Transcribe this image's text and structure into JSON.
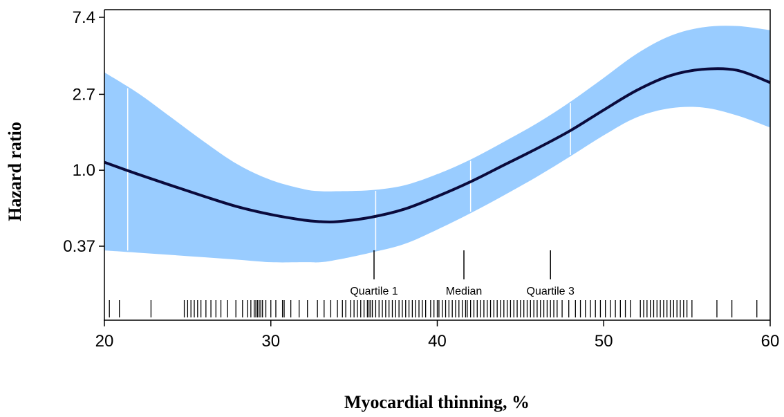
{
  "chart_data": {
    "type": "line",
    "xlabel": "Myocardial thinning, %",
    "ylabel": "Hazard ratio",
    "xlim": [
      20,
      60
    ],
    "ylog": true,
    "ylim": [
      0.18,
      7.4
    ],
    "x_ticks": [
      20,
      30,
      40,
      50,
      60
    ],
    "y_ticks": [
      7.4,
      2.7,
      1.0,
      0.37
    ],
    "y_tick_labels": [
      "7.4",
      "2.7",
      "1.0",
      "0.37"
    ],
    "band_color": "#99ccff",
    "line_color": "#0a0a3c",
    "series": [
      {
        "x": [
          20,
          22,
          24,
          26,
          28,
          30,
          32,
          33,
          34,
          36,
          38,
          40,
          42,
          44,
          46,
          48,
          50,
          52,
          54,
          56,
          58,
          60
        ],
        "y": [
          1.11,
          0.95,
          0.82,
          0.71,
          0.62,
          0.56,
          0.52,
          0.51,
          0.51,
          0.54,
          0.6,
          0.71,
          0.86,
          1.07,
          1.33,
          1.68,
          2.2,
          2.85,
          3.45,
          3.75,
          3.7,
          3.15
        ],
        "lower": [
          0.35,
          0.34,
          0.33,
          0.32,
          0.31,
          0.3,
          0.3,
          0.3,
          0.31,
          0.34,
          0.38,
          0.46,
          0.57,
          0.72,
          0.92,
          1.2,
          1.58,
          2.0,
          2.25,
          2.27,
          2.05,
          1.75
        ],
        "upper": [
          3.6,
          2.75,
          2.0,
          1.45,
          1.08,
          0.88,
          0.78,
          0.76,
          0.76,
          0.77,
          0.82,
          0.95,
          1.15,
          1.45,
          1.85,
          2.45,
          3.35,
          4.6,
          5.8,
          6.5,
          6.6,
          6.25
        ]
      }
    ],
    "reference_lines_x": [
      21.4,
      36.3,
      42.0,
      48.0
    ],
    "annotations": [
      {
        "label": "Quartile 1",
        "x": 36.2
      },
      {
        "label": "Median",
        "x": 41.6
      },
      {
        "label": "Quartile 3",
        "x": 46.8
      }
    ],
    "rug": [
      20.3,
      20.9,
      22.8,
      24.8,
      25.0,
      25.2,
      25.4,
      25.6,
      25.8,
      26.1,
      26.4,
      26.7,
      27.0,
      27.4,
      27.9,
      28.3,
      28.6,
      28.8,
      29.0,
      29.1,
      29.2,
      29.3,
      29.4,
      29.5,
      29.7,
      30.0,
      30.3,
      30.7,
      30.8,
      31.2,
      31.7,
      32.2,
      32.8,
      33.2,
      33.6,
      34.0,
      34.3,
      34.5,
      34.8,
      35.0,
      35.2,
      35.4,
      35.6,
      35.8,
      35.9,
      36.0,
      36.1,
      36.3,
      36.5,
      36.7,
      36.9,
      37.1,
      37.3,
      37.5,
      37.7,
      37.9,
      38.1,
      38.3,
      38.5,
      38.7,
      38.9,
      39.1,
      39.3,
      39.6,
      39.8,
      40.0,
      40.1,
      40.3,
      40.5,
      40.7,
      40.9,
      41.1,
      41.3,
      41.5,
      41.7,
      41.8,
      42.0,
      42.2,
      42.4,
      42.6,
      42.8,
      43.0,
      43.2,
      43.4,
      43.6,
      43.8,
      44.0,
      44.2,
      44.4,
      44.6,
      44.8,
      45.0,
      45.2,
      45.4,
      45.6,
      45.8,
      46.0,
      46.2,
      46.4,
      46.6,
      46.8,
      47.0,
      47.2,
      47.5,
      47.9,
      48.3,
      48.6,
      48.9,
      49.2,
      49.5,
      49.8,
      50.1,
      50.4,
      50.7,
      51.0,
      51.3,
      51.6,
      52.2,
      52.4,
      52.6,
      52.8,
      53.0,
      53.2,
      53.4,
      53.6,
      53.8,
      54.0,
      54.2,
      54.4,
      54.6,
      54.8,
      55.0,
      55.3,
      56.8,
      57.7,
      59.2
    ]
  }
}
